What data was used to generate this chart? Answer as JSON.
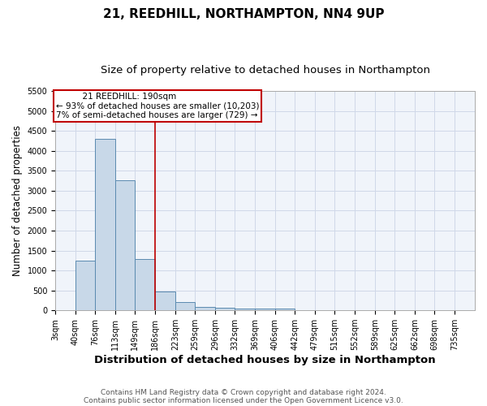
{
  "title": "21, REEDHILL, NORTHAMPTON, NN4 9UP",
  "subtitle": "Size of property relative to detached houses in Northampton",
  "xlabel": "Distribution of detached houses by size in Northampton",
  "ylabel": "Number of detached properties",
  "footnote1": "Contains HM Land Registry data © Crown copyright and database right 2024.",
  "footnote2": "Contains public sector information licensed under the Open Government Licence v3.0.",
  "bin_labels": [
    "3sqm",
    "40sqm",
    "76sqm",
    "113sqm",
    "149sqm",
    "186sqm",
    "223sqm",
    "259sqm",
    "296sqm",
    "332sqm",
    "369sqm",
    "406sqm",
    "442sqm",
    "479sqm",
    "515sqm",
    "552sqm",
    "589sqm",
    "625sqm",
    "662sqm",
    "698sqm",
    "735sqm"
  ],
  "bin_edges": [
    3,
    40,
    76,
    113,
    149,
    186,
    223,
    259,
    296,
    332,
    369,
    406,
    442,
    479,
    515,
    552,
    589,
    625,
    662,
    698,
    735
  ],
  "bar_heights": [
    0,
    1250,
    4300,
    3270,
    1280,
    480,
    210,
    90,
    60,
    55,
    55,
    55,
    0,
    0,
    0,
    0,
    0,
    0,
    0,
    0
  ],
  "bar_color": "#c8d8e8",
  "bar_edge_color": "#5a8ab0",
  "property_line_x": 186,
  "property_line_color": "#c00000",
  "annotation_line1": "          21 REEDHILL: 190sqm",
  "annotation_line2": "← 93% of detached houses are smaller (10,203)",
  "annotation_line3": "7% of semi-detached houses are larger (729) →",
  "annotation_box_color": "#c00000",
  "ylim": [
    0,
    5500
  ],
  "yticks": [
    0,
    500,
    1000,
    1500,
    2000,
    2500,
    3000,
    3500,
    4000,
    4500,
    5000,
    5500
  ],
  "grid_color": "#d0d8e8",
  "bg_color": "#f0f4fa",
  "title_fontsize": 11,
  "subtitle_fontsize": 9.5,
  "xlabel_fontsize": 9.5,
  "ylabel_fontsize": 8.5,
  "tick_fontsize": 7,
  "annotation_fontsize": 7.5,
  "footnote_fontsize": 6.5
}
